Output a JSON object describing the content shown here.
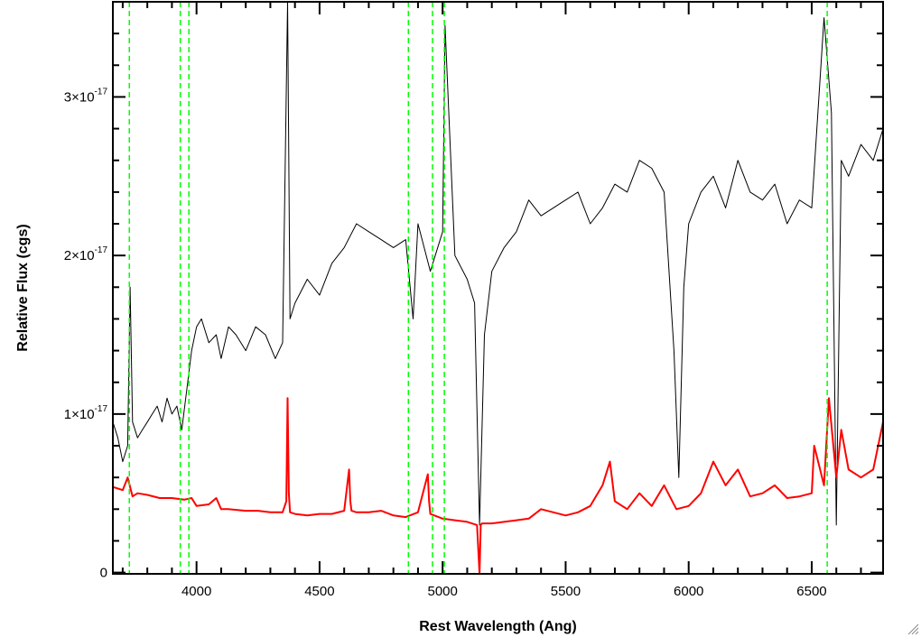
{
  "chart_data": {
    "type": "line",
    "xlabel": "Rest Wavelength (Ang)",
    "ylabel": "Relative Flux (cgs)",
    "xlim": [
      3660,
      6790
    ],
    "ylim": [
      -8e-20,
      3.6e-17
    ],
    "x_ticks": [
      {
        "value": 4000,
        "label": "4000"
      },
      {
        "value": 4500,
        "label": "4500"
      },
      {
        "value": 5000,
        "label": "5000"
      },
      {
        "value": 5500,
        "label": "5500"
      },
      {
        "value": 6000,
        "label": "6000"
      },
      {
        "value": 6500,
        "label": "6500"
      }
    ],
    "y_ticks": [
      {
        "value": 0,
        "label": "0",
        "exp": ""
      },
      {
        "value": 1e-17,
        "label": "1×10",
        "exp": "-17"
      },
      {
        "value": 2e-17,
        "label": "2×10",
        "exp": "-17"
      },
      {
        "value": 3e-17,
        "label": "3×10",
        "exp": "-17"
      }
    ],
    "vertical_lines": [
      3727,
      3934,
      3969,
      4861,
      4959,
      5007,
      6563
    ],
    "colors": {
      "spectrum": "#000000",
      "error": "#ff0000",
      "markers": "#00ff00"
    },
    "series": [
      {
        "x": [
          3660,
          3680,
          3700,
          3720,
          3730,
          3740,
          3760,
          3780,
          3800,
          3820,
          3840,
          3860,
          3880,
          3900,
          3920,
          3940,
          3960,
          3980,
          4000,
          4020,
          4050,
          4080,
          4100,
          4130,
          4160,
          4200,
          4240,
          4280,
          4320,
          4350,
          4370,
          4380,
          4400,
          4450,
          4500,
          4550,
          4600,
          4650,
          4700,
          4750,
          4800,
          4850,
          4880,
          4900,
          4950,
          5000,
          5010,
          5050,
          5100,
          5130,
          5150,
          5170,
          5200,
          5250,
          5300,
          5350,
          5400,
          5450,
          5500,
          5550,
          5600,
          5650,
          5700,
          5750,
          5800,
          5850,
          5900,
          5940,
          5960,
          5980,
          6000,
          6050,
          6100,
          6150,
          6200,
          6250,
          6300,
          6350,
          6400,
          6450,
          6500,
          6550,
          6580,
          6600,
          6620,
          6650,
          6700,
          6750,
          6790
        ],
        "y": [
          9.5e-18,
          8.5e-18,
          7e-18,
          8e-18,
          1.8e-17,
          9.5e-18,
          8.5e-18,
          9e-18,
          9.5e-18,
          1e-17,
          1.05e-17,
          9.5e-18,
          1.1e-17,
          1e-17,
          1.05e-17,
          9e-18,
          1.15e-17,
          1.4e-17,
          1.55e-17,
          1.6e-17,
          1.45e-17,
          1.5e-17,
          1.35e-17,
          1.55e-17,
          1.5e-17,
          1.4e-17,
          1.55e-17,
          1.5e-17,
          1.35e-17,
          1.45e-17,
          3.6e-17,
          1.6e-17,
          1.7e-17,
          1.85e-17,
          1.75e-17,
          1.95e-17,
          2.05e-17,
          2.2e-17,
          2.15e-17,
          2.1e-17,
          2.05e-17,
          2.1e-17,
          1.6e-17,
          2.2e-17,
          1.9e-17,
          2.15e-17,
          3.45e-17,
          2e-17,
          1.85e-17,
          1.7e-17,
          3e-18,
          1.5e-17,
          1.9e-17,
          2.05e-17,
          2.15e-17,
          2.35e-17,
          2.25e-17,
          2.3e-17,
          2.35e-17,
          2.4e-17,
          2.2e-17,
          2.3e-17,
          2.45e-17,
          2.4e-17,
          2.6e-17,
          2.55e-17,
          2.4e-17,
          1.4e-17,
          6e-18,
          1.8e-17,
          2.2e-17,
          2.4e-17,
          2.5e-17,
          2.3e-17,
          2.6e-17,
          2.4e-17,
          2.35e-17,
          2.45e-17,
          2.2e-17,
          2.35e-17,
          2.3e-17,
          3.5e-17,
          2.9e-17,
          3e-18,
          2.6e-17,
          2.5e-17,
          2.7e-17,
          2.6e-17,
          2.8e-17
        ]
      },
      {
        "x": [
          3660,
          3700,
          3720,
          3740,
          3760,
          3800,
          3850,
          3900,
          3950,
          3980,
          4000,
          4050,
          4080,
          4100,
          4130,
          4200,
          4250,
          4300,
          4350,
          4365,
          4370,
          4375,
          4380,
          4400,
          4450,
          4500,
          4550,
          4600,
          4620,
          4625,
          4630,
          4650,
          4700,
          4750,
          4800,
          4850,
          4900,
          4940,
          4945,
          4950,
          5000,
          5050,
          5100,
          5140,
          5150,
          5155,
          5160,
          5200,
          5250,
          5300,
          5350,
          5400,
          5450,
          5500,
          5550,
          5600,
          5650,
          5680,
          5700,
          5750,
          5800,
          5850,
          5900,
          5950,
          6000,
          6050,
          6100,
          6150,
          6200,
          6250,
          6300,
          6350,
          6400,
          6450,
          6500,
          6510,
          6550,
          6570,
          6600,
          6620,
          6650,
          6700,
          6750,
          6790
        ],
        "y": [
          5.4e-18,
          5.2e-18,
          6e-18,
          4.8e-18,
          5e-18,
          4.9e-18,
          4.7e-18,
          4.7e-18,
          4.6e-18,
          4.7e-18,
          4.2e-18,
          4.3e-18,
          4.7e-18,
          4e-18,
          4e-18,
          3.9e-18,
          3.9e-18,
          3.8e-18,
          3.8e-18,
          4.5e-18,
          1.1e-17,
          5e-18,
          3.8e-18,
          3.7e-18,
          3.6e-18,
          3.7e-18,
          3.7e-18,
          3.9e-18,
          6.5e-18,
          4.5e-18,
          3.9e-18,
          3.8e-18,
          3.8e-18,
          3.9e-18,
          3.6e-18,
          3.5e-18,
          3.8e-18,
          6.2e-18,
          4.5e-18,
          3.7e-18,
          3.4e-18,
          3.3e-18,
          3.2e-18,
          3e-18,
          -1e-19,
          3e-18,
          3.1e-18,
          3.1e-18,
          3.2e-18,
          3.3e-18,
          3.4e-18,
          4e-18,
          3.8e-18,
          3.6e-18,
          3.8e-18,
          4.2e-18,
          5.5e-18,
          7e-18,
          4.5e-18,
          4e-18,
          5e-18,
          4.2e-18,
          5.5e-18,
          4e-18,
          4.2e-18,
          5e-18,
          7e-18,
          5.5e-18,
          6.5e-18,
          4.8e-18,
          5e-18,
          5.5e-18,
          4.7e-18,
          4.8e-18,
          5e-18,
          8e-18,
          5.5e-18,
          1.1e-17,
          6e-18,
          9e-18,
          6.5e-18,
          6e-18,
          6.5e-18,
          9.5e-18
        ]
      }
    ]
  }
}
